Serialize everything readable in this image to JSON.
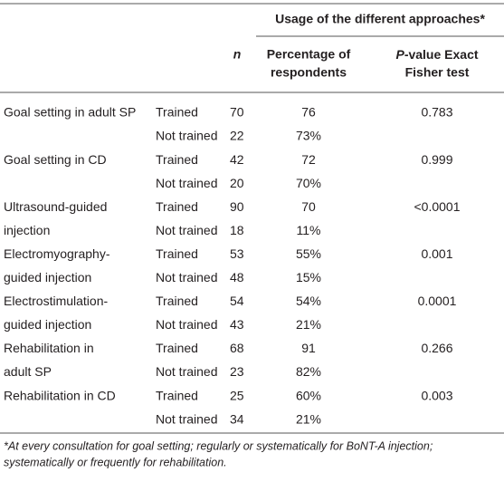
{
  "header": {
    "group_title": "Usage of the different approaches*",
    "n": "n",
    "percentage": [
      "Percentage of",
      "respondents"
    ],
    "pvalue": {
      "italic": "P",
      "rest": "-value Exact",
      "line2": "Fisher test"
    }
  },
  "groups": [
    {
      "label": [
        "Goal setting in adult SP"
      ],
      "p": "0.783",
      "rows": [
        {
          "status": "Trained",
          "n": "70",
          "pct": "76"
        },
        {
          "status": "Not trained",
          "n": "22",
          "pct": "73%"
        }
      ]
    },
    {
      "label": [
        "Goal setting in CD"
      ],
      "p": "0.999",
      "rows": [
        {
          "status": "Trained",
          "n": "42",
          "pct": "72"
        },
        {
          "status": "Not trained",
          "n": "20",
          "pct": "70%"
        }
      ]
    },
    {
      "label": [
        "Ultrasound-guided",
        "injection"
      ],
      "p": "<0.0001",
      "rows": [
        {
          "status": "Trained",
          "n": "90",
          "pct": "70"
        },
        {
          "status": "Not trained",
          "n": "18",
          "pct": "11%"
        }
      ]
    },
    {
      "label": [
        "Electromyography-",
        "guided injection"
      ],
      "p": "0.001",
      "rows": [
        {
          "status": "Trained",
          "n": "53",
          "pct": "55%"
        },
        {
          "status": "Not trained",
          "n": "48",
          "pct": "15%"
        }
      ]
    },
    {
      "label": [
        "Electrostimulation-",
        "guided injection"
      ],
      "p": "0.0001",
      "rows": [
        {
          "status": "Trained",
          "n": "54",
          "pct": "54%"
        },
        {
          "status": "Not trained",
          "n": "43",
          "pct": "21%"
        }
      ]
    },
    {
      "label": [
        "Rehabilitation in",
        "adult SP"
      ],
      "p": "0.266",
      "rows": [
        {
          "status": "Trained",
          "n": "68",
          "pct": "91"
        },
        {
          "status": "Not trained",
          "n": "23",
          "pct": "82%"
        }
      ]
    },
    {
      "label": [
        "Rehabilitation in CD"
      ],
      "p": "0.003",
      "rows": [
        {
          "status": "Trained",
          "n": "25",
          "pct": "60%"
        },
        {
          "status": "Not trained",
          "n": "34",
          "pct": "21%"
        }
      ]
    }
  ],
  "footnote": [
    "*At every consultation for goal setting; regularly or systematically for BoNT-A injection;",
    "systematically or frequently for rehabilitation."
  ]
}
